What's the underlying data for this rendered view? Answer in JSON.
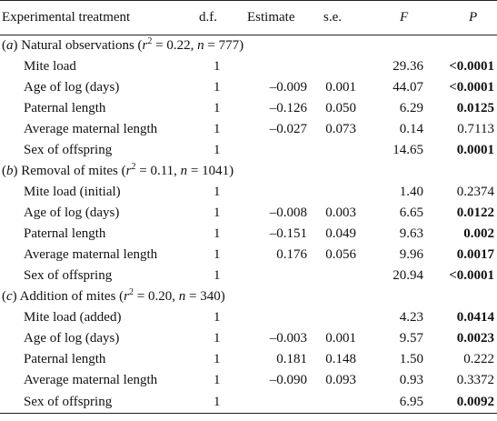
{
  "header": {
    "treatment": "Experimental treatment",
    "df": "d.f.",
    "estimate": "Estimate",
    "se": "s.e.",
    "f": "F",
    "p": "P"
  },
  "sections": [
    {
      "prefix": "(",
      "letter": "a",
      "name": ") Natural observations (",
      "r": "r",
      "r_exp": "2",
      "r_value": " = 0.22, ",
      "n": "n",
      "n_value": " = 777)",
      "rows": [
        {
          "name": "Mite load",
          "df": "1",
          "estimate": "",
          "se": "",
          "f": "29.36",
          "p": "<0.0001",
          "bold": true
        },
        {
          "name": "Age of log (days)",
          "df": "1",
          "estimate": "–0.009",
          "se": "0.001",
          "f": "44.07",
          "p": "<0.0001",
          "bold": true
        },
        {
          "name": "Paternal length",
          "df": "1",
          "estimate": "–0.126",
          "se": "0.050",
          "f": "6.29",
          "p": "0.0125",
          "bold": true
        },
        {
          "name": "Average maternal length",
          "df": "1",
          "estimate": "–0.027",
          "se": "0.073",
          "f": "0.14",
          "p": "0.7113",
          "bold": false
        },
        {
          "name": "Sex of offspring",
          "df": "1",
          "estimate": "",
          "se": "",
          "f": "14.65",
          "p": "0.0001",
          "bold": true
        }
      ]
    },
    {
      "prefix": "(",
      "letter": "b",
      "name": ") Removal of mites (",
      "r": "r",
      "r_exp": "2",
      "r_value": " = 0.11, ",
      "n": "n",
      "n_value": " = 1041)",
      "rows": [
        {
          "name": "Mite load (initial)",
          "df": "1",
          "estimate": "",
          "se": "",
          "f": "1.40",
          "p": "0.2374",
          "bold": false
        },
        {
          "name": "Age of log (days)",
          "df": "1",
          "estimate": "–0.008",
          "se": "0.003",
          "f": "6.65",
          "p": "0.0122",
          "bold": true
        },
        {
          "name": "Paternal length",
          "df": "1",
          "estimate": "–0.151",
          "se": "0.049",
          "f": "9.63",
          "p": "0.002",
          "bold": true
        },
        {
          "name": "Average maternal length",
          "df": "1",
          "estimate": "0.176",
          "se": "0.056",
          "f": "9.96",
          "p": "0.0017",
          "bold": true
        },
        {
          "name": "Sex of offspring",
          "df": "1",
          "estimate": "",
          "se": "",
          "f": "20.94",
          "p": "<0.0001",
          "bold": true
        }
      ]
    },
    {
      "prefix": "(",
      "letter": "c",
      "name": ") Addition of mites (",
      "r": "r",
      "r_exp": "2",
      "r_value": " = 0.20, ",
      "n": "n",
      "n_value": " = 340)",
      "rows": [
        {
          "name": "Mite load (added)",
          "df": "1",
          "estimate": "",
          "se": "",
          "f": "4.23",
          "p": "0.0414",
          "bold": true
        },
        {
          "name": "Age of log (days)",
          "df": "1",
          "estimate": "–0.003",
          "se": "0.001",
          "f": "9.57",
          "p": "0.0023",
          "bold": true
        },
        {
          "name": "Paternal length",
          "df": "1",
          "estimate": "0.181",
          "se": "0.148",
          "f": "1.50",
          "p": "0.222",
          "bold": false
        },
        {
          "name": "Average maternal length",
          "df": "1",
          "estimate": "–0.090",
          "se": "0.093",
          "f": "0.93",
          "p": "0.3372",
          "bold": false
        },
        {
          "name": "Sex of offspring",
          "df": "1",
          "estimate": "",
          "se": "",
          "f": "6.95",
          "p": "0.0092",
          "bold": true
        }
      ]
    }
  ]
}
